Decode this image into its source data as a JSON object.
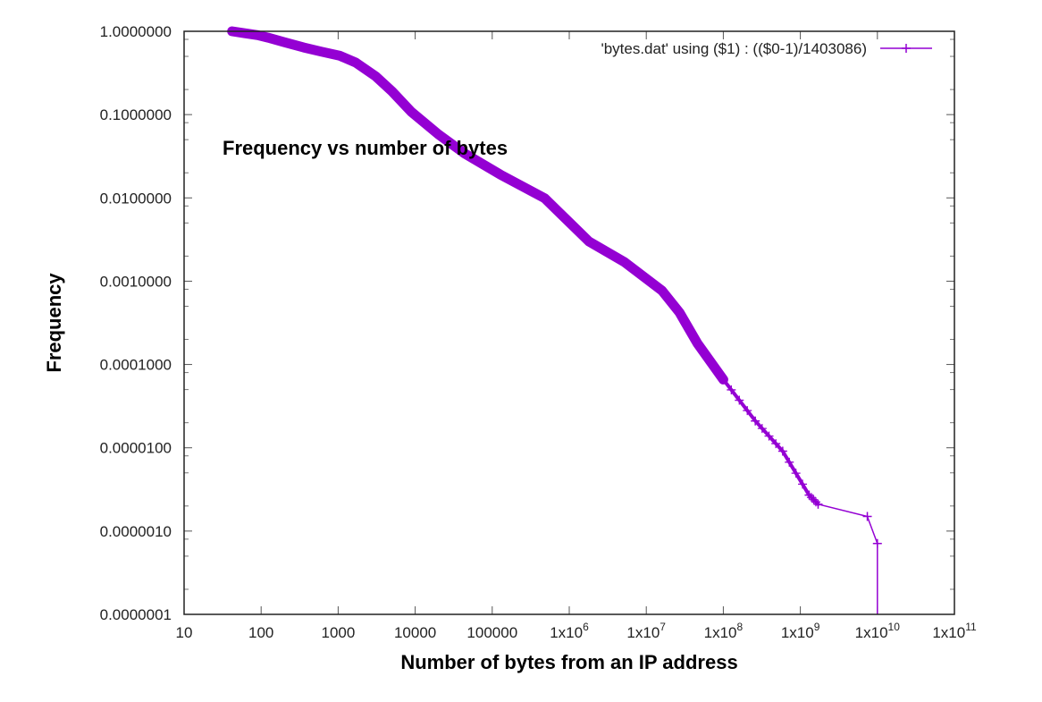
{
  "chart_data": {
    "type": "line",
    "title": "Frequency vs number of bytes",
    "xlabel": "Number of bytes from an IP address",
    "ylabel": "Frequency",
    "xscale": "log",
    "yscale": "log",
    "xlim": [
      10,
      100000000000
    ],
    "ylim": [
      1e-07,
      1.0
    ],
    "grid": false,
    "legend_position": "top-right",
    "x_ticks": [
      {
        "value": 10,
        "base": "10",
        "exp": ""
      },
      {
        "value": 100,
        "base": "100",
        "exp": ""
      },
      {
        "value": 1000,
        "base": "1000",
        "exp": ""
      },
      {
        "value": 10000,
        "base": "10000",
        "exp": ""
      },
      {
        "value": 100000,
        "base": "100000",
        "exp": ""
      },
      {
        "value": 1000000,
        "base": "1x10",
        "exp": "6"
      },
      {
        "value": 10000000,
        "base": "1x10",
        "exp": "7"
      },
      {
        "value": 100000000,
        "base": "1x10",
        "exp": "8"
      },
      {
        "value": 1000000000,
        "base": "1x10",
        "exp": "9"
      },
      {
        "value": 10000000000,
        "base": "1x10",
        "exp": "10"
      },
      {
        "value": 100000000000,
        "base": "1x10",
        "exp": "11"
      }
    ],
    "y_ticks": [
      {
        "value": 1.0,
        "label": "1.0000000"
      },
      {
        "value": 0.1,
        "label": "0.1000000"
      },
      {
        "value": 0.01,
        "label": "0.0100000"
      },
      {
        "value": 0.001,
        "label": "0.0010000"
      },
      {
        "value": 0.0001,
        "label": "0.0001000"
      },
      {
        "value": 1e-05,
        "label": "0.0000100"
      },
      {
        "value": 1e-06,
        "label": "0.0000010"
      },
      {
        "value": 1e-07,
        "label": "0.0000001"
      }
    ],
    "series": [
      {
        "name": "'bytes.dat' using ($1) : (($0-1)/1403086)",
        "color": "#9400d3",
        "marker": "+",
        "x": [
          42,
          60,
          90,
          123,
          200,
          358,
          600,
          1040,
          1700,
          3050,
          5000,
          8900,
          20000,
          44000,
          128000,
          480000,
          1800000,
          5200000,
          16000000,
          27000000,
          46000000,
          100000000,
          260000000,
          590000000,
          1300000000,
          1700000000,
          7400000000,
          10000000000,
          10000000000
        ],
        "y": [
          1.0,
          0.95,
          0.9,
          0.84,
          0.74,
          0.64,
          0.57,
          0.51,
          0.42,
          0.29,
          0.19,
          0.108,
          0.058,
          0.034,
          0.019,
          0.0099,
          0.003,
          0.0017,
          0.00077,
          0.00042,
          0.00018,
          6.6e-05,
          2.1e-05,
          9.1e-06,
          2.7e-06,
          2.1e-06,
          1.5e-06,
          7.1e-07,
          1e-07
        ]
      }
    ]
  },
  "legend": {
    "label": "'bytes.dat' using ($1) : (($0-1)/1403086)"
  }
}
